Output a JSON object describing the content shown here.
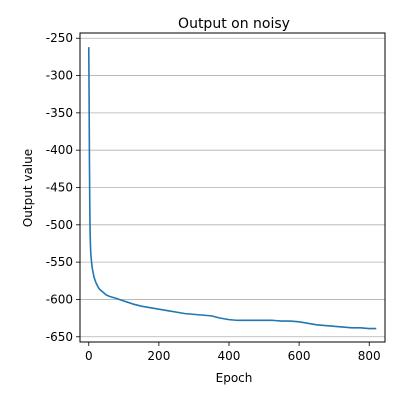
{
  "chart_data": {
    "type": "line",
    "title": "Output on noisy",
    "xlabel": "Epoch",
    "ylabel": "Output value",
    "xlim": [
      -25,
      845
    ],
    "ylim": [
      -657,
      -243
    ],
    "xticks": [
      0,
      200,
      400,
      600,
      800
    ],
    "yticks": [
      -250,
      -300,
      -350,
      -400,
      -450,
      -500,
      -550,
      -600,
      -650
    ],
    "grid": "horizontal",
    "line_color": "#1f77b4",
    "series": [
      {
        "x": [
          0,
          1,
          2,
          3,
          4,
          5,
          6,
          8,
          10,
          12,
          15,
          20,
          25,
          30,
          40,
          50,
          60,
          75,
          100,
          125,
          150,
          175,
          200,
          225,
          250,
          275,
          300,
          325,
          350,
          375,
          400,
          425,
          450,
          475,
          500,
          525,
          550,
          575,
          600,
          625,
          650,
          675,
          700,
          725,
          750,
          775,
          800,
          810,
          820
        ],
        "y": [
          -262,
          -330,
          -420,
          -480,
          -515,
          -530,
          -540,
          -550,
          -558,
          -563,
          -570,
          -577,
          -582,
          -586,
          -590,
          -594,
          -596,
          -598,
          -602,
          -606,
          -609,
          -611,
          -613,
          -615,
          -617,
          -619,
          -620,
          -621,
          -622,
          -625,
          -627,
          -628,
          -628,
          -628,
          -628,
          -628,
          -629,
          -629,
          -630,
          -632,
          -634,
          -635,
          -636,
          -637,
          -638,
          -638,
          -639,
          -639,
          -639
        ]
      }
    ]
  }
}
